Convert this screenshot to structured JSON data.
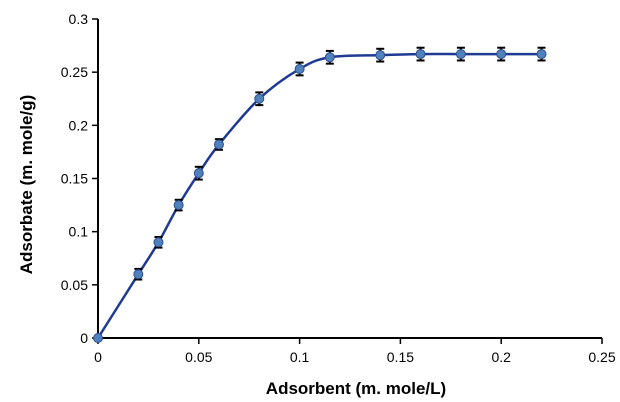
{
  "chart_data": {
    "type": "scatter",
    "xlabel": "Adsorbent (m. mole/L)",
    "ylabel": "Adsorbate (m. mole/g)",
    "xlim": [
      0,
      0.25
    ],
    "ylim": [
      0,
      0.3
    ],
    "xticks": [
      0,
      0.05,
      0.1,
      0.15,
      0.2,
      0.25
    ],
    "xtick_labels": [
      "0",
      "0.05",
      "0.1",
      "0.15",
      "0.2",
      "0.25"
    ],
    "yticks": [
      0,
      0.05,
      0.1,
      0.15,
      0.2,
      0.25,
      0.3
    ],
    "ytick_labels": [
      "0",
      "0.05",
      "0.1",
      "0.15",
      "0.2",
      "0.25",
      "0.3"
    ],
    "grid": false,
    "series": [
      {
        "x": [
          0,
          0.02,
          0.03,
          0.04,
          0.05,
          0.06,
          0.08,
          0.1,
          0.115,
          0.14,
          0.16,
          0.18,
          0.2,
          0.22
        ],
        "y": [
          0,
          0.06,
          0.09,
          0.125,
          0.155,
          0.182,
          0.225,
          0.253,
          0.264,
          0.266,
          0.267,
          0.267,
          0.267,
          0.267
        ],
        "error": [
          0,
          0.005,
          0.005,
          0.005,
          0.006,
          0.005,
          0.006,
          0.006,
          0.006,
          0.006,
          0.006,
          0.006,
          0.006,
          0.006
        ],
        "marker_color": "#4f81bd",
        "marker_edge_color": "#2f4f8f",
        "line_color": "#1f3a93",
        "line_style": "smooth",
        "error_bar_color": "#000000"
      }
    ]
  }
}
